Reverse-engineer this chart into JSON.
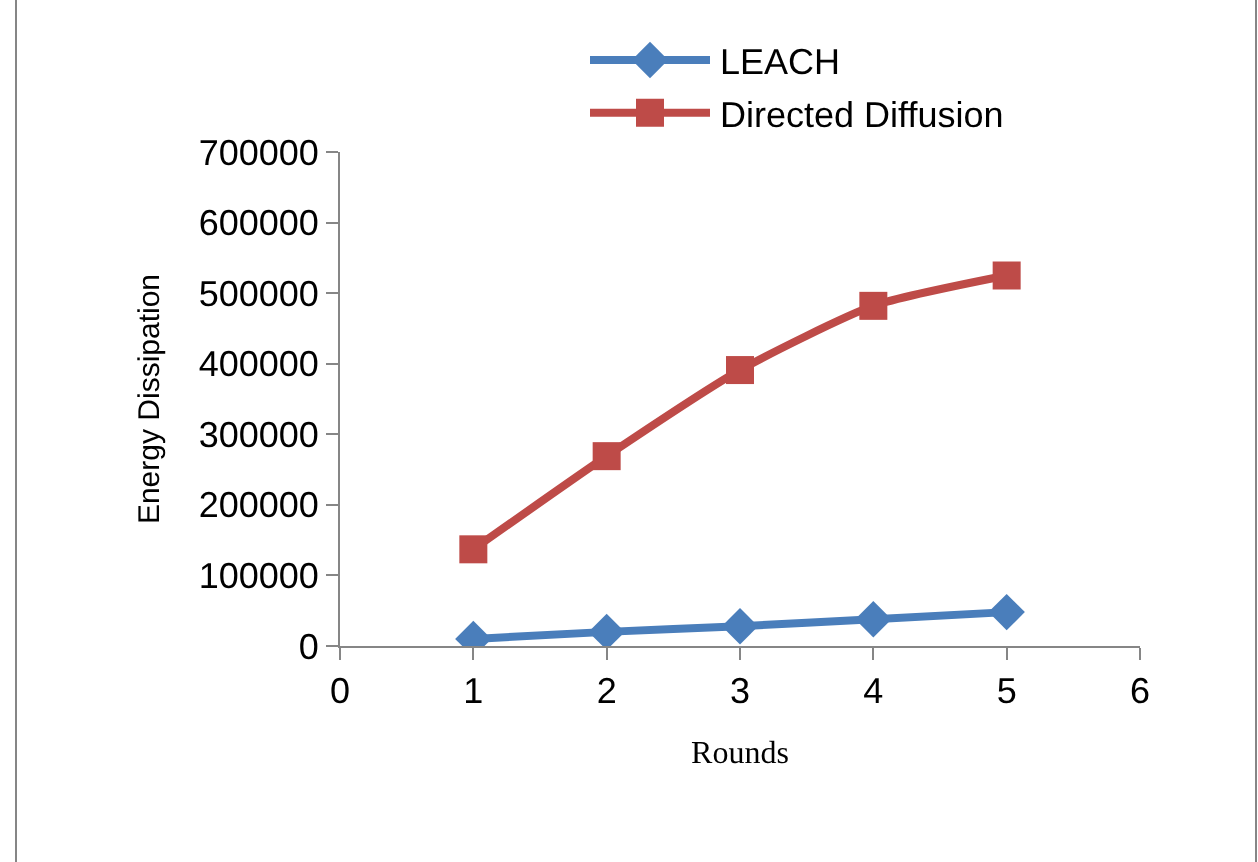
{
  "chart_data": {
    "type": "line",
    "xlabel": "Rounds",
    "ylabel": "Energy Dissipation",
    "x": [
      1,
      2,
      3,
      4,
      5
    ],
    "series": [
      {
        "name": "LEACH",
        "color": "#4a7ebb",
        "marker": "diamond",
        "values": [
          10000,
          20000,
          28000,
          38000,
          48000
        ]
      },
      {
        "name": "Directed Diffusion",
        "color": "#be4b48",
        "marker": "square",
        "values": [
          137000,
          269000,
          391000,
          482000,
          525000
        ]
      }
    ],
    "xlim": [
      0,
      6
    ],
    "xticks": [
      0,
      1,
      2,
      3,
      4,
      5,
      6
    ],
    "ylim": [
      0,
      700000
    ],
    "yticks": [
      0,
      100000,
      200000,
      300000,
      400000,
      500000,
      600000,
      700000
    ],
    "legend": "top",
    "line_style": "solid"
  }
}
